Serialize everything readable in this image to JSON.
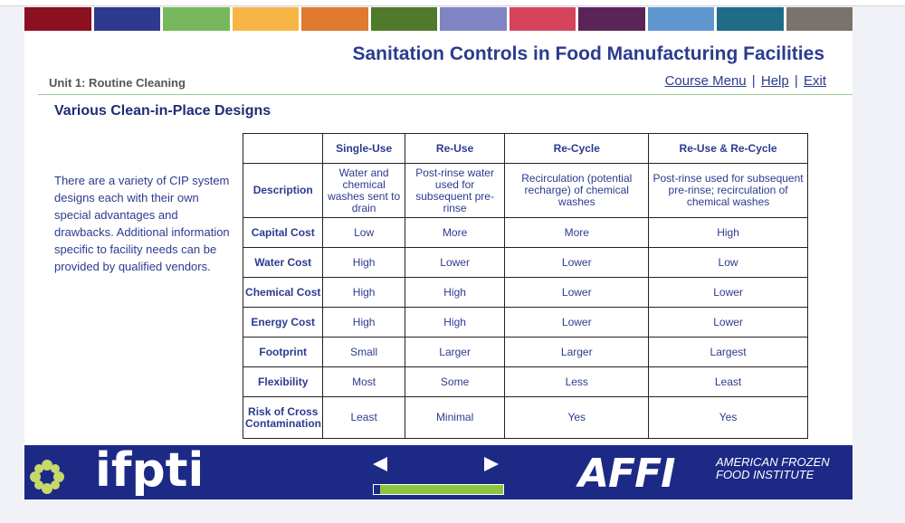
{
  "colors": {
    "accent": "#2b3b8f",
    "footer_bg": "#1c2a86",
    "strip": [
      "#8b1020",
      "#2e3a8f",
      "#77b85e",
      "#f7b545",
      "#e07a2e",
      "#4e7a2a",
      "#7f84c2",
      "#d6445c",
      "#5b2459",
      "#5e96d0",
      "#206c86",
      "#7a736b"
    ]
  },
  "header": {
    "course_title": "Sanitation Controls in Food Manufacturing Facilities",
    "unit": "Unit 1: Routine Cleaning",
    "links": {
      "course_menu": "Course Menu",
      "help": "Help",
      "exit": "Exit",
      "separator": "|"
    }
  },
  "page": {
    "heading": "Various Clean-in-Place Designs",
    "intro": "There are a variety of CIP system designs each with their own special advantages and drawbacks. Additional information specific to facility needs can be provided by qualified vendors."
  },
  "table": {
    "columns": [
      "",
      "Single-Use",
      "Re-Use",
      "Re-Cycle",
      "Re-Use & Re-Cycle"
    ],
    "rows": [
      {
        "label": "Description",
        "values": [
          "Water and chemical washes sent to drain",
          "Post-rinse water used for subsequent pre-rinse",
          "Recirculation (potential recharge) of chemical washes",
          "Post-rinse used for subsequent pre-rinse; recirculation of chemical washes"
        ]
      },
      {
        "label": "Capital Cost",
        "values": [
          "Low",
          "More",
          "More",
          "High"
        ]
      },
      {
        "label": "Water Cost",
        "values": [
          "High",
          "Lower",
          "Lower",
          "Low"
        ]
      },
      {
        "label": "Chemical Cost",
        "values": [
          "High",
          "High",
          "Lower",
          "Lower"
        ]
      },
      {
        "label": "Energy Cost",
        "values": [
          "High",
          "High",
          "Lower",
          "Lower"
        ]
      },
      {
        "label": "Footprint",
        "values": [
          "Small",
          "Larger",
          "Larger",
          "Largest"
        ]
      },
      {
        "label": "Flexibility",
        "values": [
          "Most",
          "Some",
          "Less",
          "Least"
        ]
      },
      {
        "label": "Risk of Cross Contamination",
        "values": [
          "Least",
          "Minimal",
          "Yes",
          "Yes"
        ]
      }
    ]
  },
  "footer": {
    "ifpti_logo": "ifpti",
    "affi_mark": "AFFI",
    "affi_name": "AMERICAN FROZEN FOOD INSTITUTE",
    "progress": 0.05
  }
}
